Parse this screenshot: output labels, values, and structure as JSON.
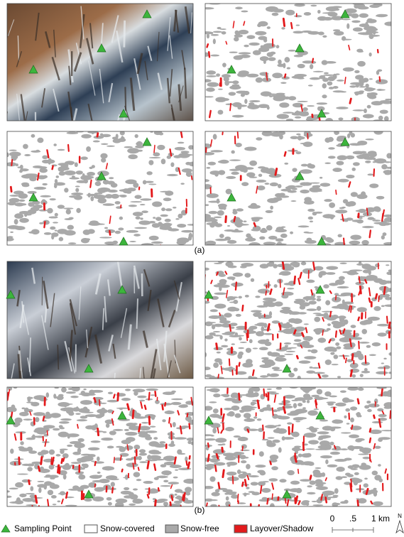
{
  "figure": {
    "panel_labels": [
      "(a)",
      "(b)"
    ],
    "legend": {
      "items": [
        "Sampling Point",
        "Snow-covered",
        "Snow-free",
        "Layover/Shadow"
      ],
      "scale_labels": [
        "0",
        ".5",
        "1 km"
      ],
      "north": "N"
    }
  }
}
